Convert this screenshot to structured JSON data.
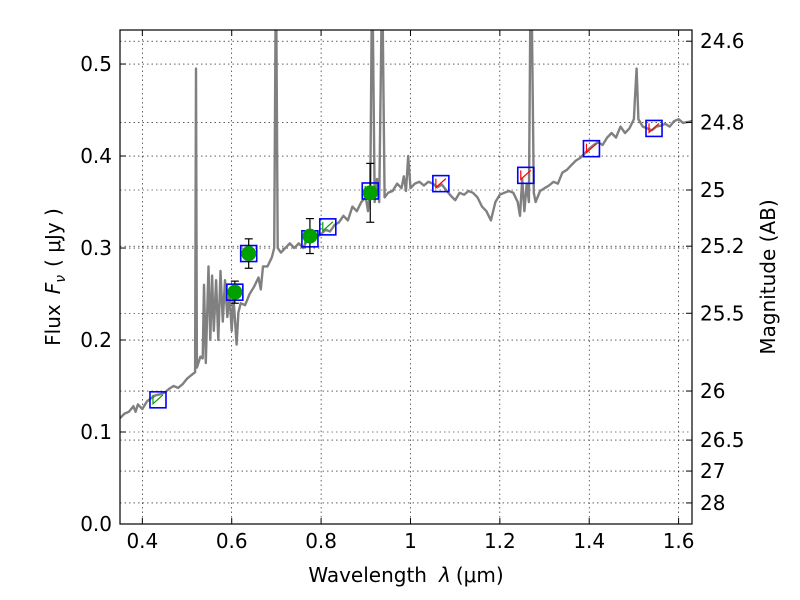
{
  "chart_data": {
    "type": "line",
    "xlabel": "Wavelength",
    "xlabel_symbol": "λ",
    "xlabel_unit": "(μm)",
    "ylabel": "Flux",
    "ylabel_symbol": "F",
    "ylabel_subscript": "ν",
    "ylabel_unit": "( μJy )",
    "y2label": "Magnitude (AB)",
    "xlim": [
      0.35,
      1.63
    ],
    "ylim": [
      0.0,
      0.537
    ],
    "grid": true,
    "xticks": [
      0.4,
      0.6,
      0.8,
      1.0,
      1.2,
      1.4,
      1.6
    ],
    "xtick_labels": [
      "0.4",
      "0.6",
      "0.8",
      "1",
      "1.2",
      "1.4",
      "1.6"
    ],
    "yticks": [
      0.0,
      0.1,
      0.2,
      0.3,
      0.4,
      0.5
    ],
    "ytick_labels": [
      "0.0",
      "0.1",
      "0.2",
      "0.3",
      "0.4",
      "0.5"
    ],
    "mag_ticks": [
      "24.6",
      "24.8",
      "25",
      "25.2",
      "25.5",
      "26",
      "26.5",
      "27",
      "28"
    ],
    "colors": {
      "spectrum": "#808080",
      "observed": "#00a000",
      "box": "#0000ff",
      "model_blue": "#00a000",
      "model_red": "#ff0000"
    },
    "spectrum": [
      [
        0.35,
        0.115
      ],
      [
        0.36,
        0.12
      ],
      [
        0.37,
        0.122
      ],
      [
        0.38,
        0.128
      ],
      [
        0.385,
        0.122
      ],
      [
        0.39,
        0.13
      ],
      [
        0.4,
        0.125
      ],
      [
        0.41,
        0.133
      ],
      [
        0.42,
        0.137
      ],
      [
        0.43,
        0.14
      ],
      [
        0.44,
        0.141
      ],
      [
        0.45,
        0.143
      ],
      [
        0.46,
        0.147
      ],
      [
        0.47,
        0.15
      ],
      [
        0.48,
        0.148
      ],
      [
        0.49,
        0.152
      ],
      [
        0.5,
        0.158
      ],
      [
        0.51,
        0.162
      ],
      [
        0.518,
        0.165
      ],
      [
        0.52,
        0.495
      ],
      [
        0.522,
        0.17
      ],
      [
        0.53,
        0.182
      ],
      [
        0.535,
        0.18
      ],
      [
        0.538,
        0.26
      ],
      [
        0.542,
        0.175
      ],
      [
        0.548,
        0.28
      ],
      [
        0.552,
        0.2
      ],
      [
        0.556,
        0.27
      ],
      [
        0.56,
        0.21
      ],
      [
        0.565,
        0.265
      ],
      [
        0.57,
        0.2
      ],
      [
        0.575,
        0.275
      ],
      [
        0.58,
        0.22
      ],
      [
        0.585,
        0.265
      ],
      [
        0.59,
        0.225
      ],
      [
        0.595,
        0.25
      ],
      [
        0.6,
        0.21
      ],
      [
        0.604,
        0.245
      ],
      [
        0.607,
        0.225
      ],
      [
        0.611,
        0.195
      ],
      [
        0.615,
        0.23
      ],
      [
        0.62,
        0.24
      ],
      [
        0.63,
        0.238
      ],
      [
        0.64,
        0.25
      ],
      [
        0.65,
        0.258
      ],
      [
        0.66,
        0.268
      ],
      [
        0.665,
        0.255
      ],
      [
        0.67,
        0.28
      ],
      [
        0.68,
        0.28
      ],
      [
        0.69,
        0.29
      ],
      [
        0.695,
        0.3
      ],
      [
        0.698,
        0.537
      ],
      [
        0.7,
        0.537
      ],
      [
        0.703,
        0.3
      ],
      [
        0.71,
        0.295
      ],
      [
        0.72,
        0.3
      ],
      [
        0.73,
        0.305
      ],
      [
        0.74,
        0.3
      ],
      [
        0.75,
        0.305
      ],
      [
        0.76,
        0.3
      ],
      [
        0.77,
        0.31
      ],
      [
        0.78,
        0.315
      ],
      [
        0.79,
        0.312
      ],
      [
        0.8,
        0.315
      ],
      [
        0.81,
        0.32
      ],
      [
        0.82,
        0.318
      ],
      [
        0.83,
        0.325
      ],
      [
        0.84,
        0.328
      ],
      [
        0.85,
        0.335
      ],
      [
        0.86,
        0.33
      ],
      [
        0.87,
        0.345
      ],
      [
        0.88,
        0.34
      ],
      [
        0.89,
        0.35
      ],
      [
        0.9,
        0.355
      ],
      [
        0.905,
        0.34
      ],
      [
        0.91,
        0.365
      ],
      [
        0.913,
        0.537
      ],
      [
        0.916,
        0.537
      ],
      [
        0.92,
        0.35
      ],
      [
        0.925,
        0.375
      ],
      [
        0.93,
        0.35
      ],
      [
        0.935,
        0.537
      ],
      [
        0.938,
        0.537
      ],
      [
        0.942,
        0.355
      ],
      [
        0.95,
        0.36
      ],
      [
        0.96,
        0.362
      ],
      [
        0.97,
        0.37
      ],
      [
        0.98,
        0.365
      ],
      [
        0.985,
        0.378
      ],
      [
        0.99,
        0.362
      ],
      [
        0.995,
        0.4
      ],
      [
        1.0,
        0.365
      ],
      [
        1.01,
        0.37
      ],
      [
        1.02,
        0.372
      ],
      [
        1.03,
        0.368
      ],
      [
        1.04,
        0.372
      ],
      [
        1.05,
        0.37
      ],
      [
        1.06,
        0.366
      ],
      [
        1.07,
        0.369
      ],
      [
        1.08,
        0.363
      ],
      [
        1.09,
        0.357
      ],
      [
        1.1,
        0.352
      ],
      [
        1.11,
        0.36
      ],
      [
        1.12,
        0.358
      ],
      [
        1.13,
        0.362
      ],
      [
        1.14,
        0.36
      ],
      [
        1.15,
        0.355
      ],
      [
        1.16,
        0.345
      ],
      [
        1.17,
        0.34
      ],
      [
        1.18,
        0.33
      ],
      [
        1.19,
        0.35
      ],
      [
        1.2,
        0.358
      ],
      [
        1.21,
        0.36
      ],
      [
        1.22,
        0.362
      ],
      [
        1.23,
        0.36
      ],
      [
        1.24,
        0.35
      ],
      [
        1.245,
        0.335
      ],
      [
        1.25,
        0.375
      ],
      [
        1.255,
        0.34
      ],
      [
        1.26,
        0.37
      ],
      [
        1.265,
        0.35
      ],
      [
        1.268,
        0.537
      ],
      [
        1.272,
        0.537
      ],
      [
        1.276,
        0.36
      ],
      [
        1.28,
        0.35
      ],
      [
        1.29,
        0.362
      ],
      [
        1.3,
        0.365
      ],
      [
        1.31,
        0.368
      ],
      [
        1.32,
        0.372
      ],
      [
        1.33,
        0.37
      ],
      [
        1.34,
        0.382
      ],
      [
        1.35,
        0.385
      ],
      [
        1.36,
        0.39
      ],
      [
        1.37,
        0.395
      ],
      [
        1.38,
        0.398
      ],
      [
        1.39,
        0.403
      ],
      [
        1.4,
        0.408
      ],
      [
        1.41,
        0.412
      ],
      [
        1.42,
        0.415
      ],
      [
        1.43,
        0.412
      ],
      [
        1.44,
        0.42
      ],
      [
        1.45,
        0.425
      ],
      [
        1.46,
        0.42
      ],
      [
        1.47,
        0.432
      ],
      [
        1.48,
        0.425
      ],
      [
        1.49,
        0.43
      ],
      [
        1.5,
        0.44
      ],
      [
        1.502,
        0.46
      ],
      [
        1.506,
        0.495
      ],
      [
        1.51,
        0.44
      ],
      [
        1.52,
        0.432
      ],
      [
        1.53,
        0.43
      ],
      [
        1.54,
        0.428
      ],
      [
        1.55,
        0.432
      ],
      [
        1.56,
        0.433
      ],
      [
        1.57,
        0.435
      ],
      [
        1.58,
        0.432
      ],
      [
        1.59,
        0.438
      ],
      [
        1.6,
        0.44
      ],
      [
        1.61,
        0.436
      ],
      [
        1.62,
        0.437
      ],
      [
        1.63,
        0.438
      ]
    ],
    "observed": [
      {
        "x": 0.607,
        "y": 0.252,
        "err": 0.012
      },
      {
        "x": 0.638,
        "y": 0.294,
        "err": 0.016
      },
      {
        "x": 0.775,
        "y": 0.313,
        "err": 0.019
      },
      {
        "x": 0.91,
        "y": 0.36,
        "err": 0.032
      }
    ],
    "model_boxes": [
      {
        "x": 0.435,
        "y": 0.135,
        "color": "model_blue"
      },
      {
        "x": 0.607,
        "y": 0.252,
        "color": "model_blue"
      },
      {
        "x": 0.638,
        "y": 0.294,
        "color": "model_blue"
      },
      {
        "x": 0.775,
        "y": 0.31,
        "color": "model_blue"
      },
      {
        "x": 0.815,
        "y": 0.323,
        "color": "model_blue"
      },
      {
        "x": 0.91,
        "y": 0.362,
        "color": "model_blue"
      },
      {
        "x": 1.068,
        "y": 0.37,
        "color": "model_red"
      },
      {
        "x": 1.258,
        "y": 0.379,
        "color": "model_red"
      },
      {
        "x": 1.405,
        "y": 0.408,
        "color": "model_red"
      },
      {
        "x": 1.545,
        "y": 0.43,
        "color": "model_red"
      }
    ]
  }
}
